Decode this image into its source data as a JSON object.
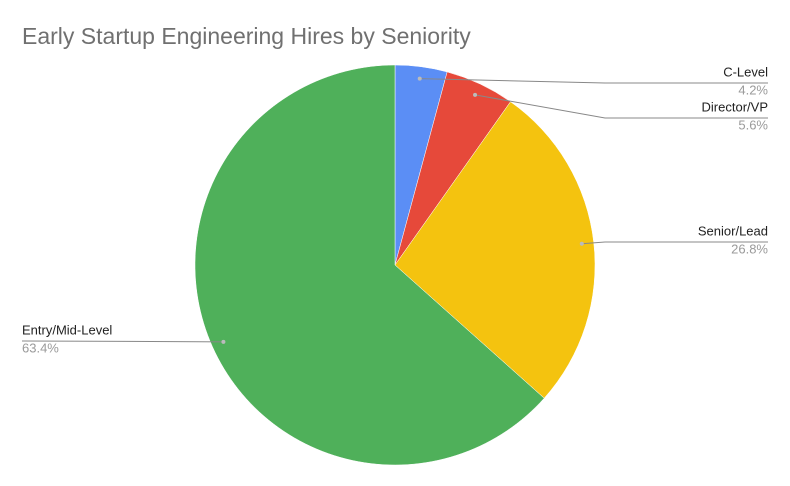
{
  "chart_data": {
    "type": "pie",
    "title": "Early Startup Engineering Hires by Seniority",
    "categories": [
      "C-Level",
      "Director/VP",
      "Senior/Lead",
      "Entry/Mid-Level"
    ],
    "values": [
      4.2,
      5.6,
      26.8,
      63.4
    ],
    "value_labels": [
      "4.2%",
      "5.6%",
      "26.8%",
      "63.4%"
    ],
    "colors": [
      "#5b8ef5",
      "#e6493a",
      "#f4c30f",
      "#4fb05a"
    ]
  }
}
